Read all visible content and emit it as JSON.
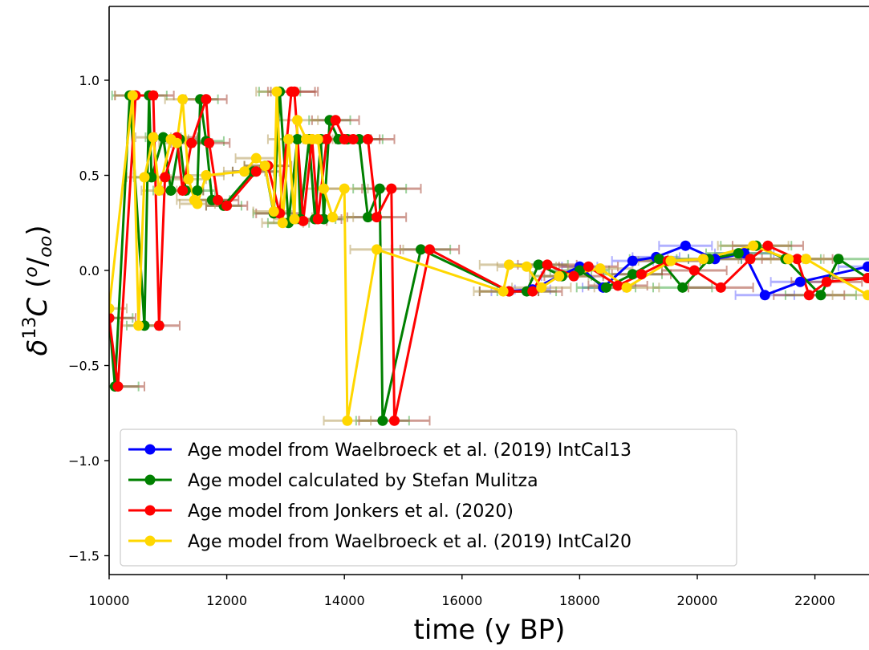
{
  "chart_data": {
    "type": "line",
    "xlabel": "time (y BP)",
    "ylabel_parts": [
      "δ",
      "13",
      "C",
      "(",
      "o",
      "/",
      "oo",
      ")"
    ],
    "xlim": [
      10000,
      22900
    ],
    "ylim": [
      -1.6,
      1.4
    ],
    "x_ticks": [
      10000,
      12000,
      14000,
      16000,
      18000,
      20000,
      22000
    ],
    "y_ticks": [
      -1.5,
      -1.0,
      -0.5,
      0.0,
      0.5,
      1.0
    ],
    "x_tick_labels": [
      "10000",
      "12000",
      "14000",
      "16000",
      "18000",
      "20000",
      "22000"
    ],
    "y_tick_labels": [
      "−1.5",
      "−1.0",
      "−0.5",
      "0.0",
      "0.5",
      "1.0"
    ],
    "legend_position": "lower-left",
    "series": [
      {
        "name": "Age model from Waelbroeck et al. (2019) IntCal13",
        "color": "#0000ff",
        "err_color": "#7070ff",
        "x": [
          16800,
          17200,
          17650,
          18000,
          18400,
          18900,
          19300,
          19800,
          20300,
          20800,
          21150,
          21750,
          22900
        ],
        "y": [
          -0.11,
          -0.1,
          -0.03,
          0.02,
          -0.09,
          0.05,
          0.07,
          0.13,
          0.06,
          0.09,
          -0.13,
          -0.06,
          0.02
        ],
        "xerr": [
          300,
          300,
          300,
          300,
          350,
          350,
          400,
          450,
          450,
          500,
          500,
          500,
          500
        ]
      },
      {
        "name": "Age model calculated by Stefan Mulitza",
        "color": "#008000",
        "err_color": "#4caf4c",
        "x": [
          10000,
          10100,
          10350,
          10600,
          10680,
          10720,
          10920,
          11050,
          11200,
          11300,
          11500,
          11550,
          11650,
          11750,
          11950,
          12450,
          12650,
          12800,
          12900,
          13050,
          13200,
          13250,
          13400,
          13500,
          13600,
          13650,
          13750,
          13900,
          14050,
          14250,
          14400,
          14600,
          14650,
          15300,
          16800,
          17100,
          17300,
          17700,
          18000,
          18450,
          18900,
          19350,
          19750,
          20200,
          20700,
          21000,
          21500,
          22100,
          22400,
          22900
        ],
        "y": [
          -0.25,
          -0.61,
          0.92,
          -0.29,
          0.92,
          0.49,
          0.7,
          0.42,
          0.69,
          0.42,
          0.42,
          0.9,
          0.68,
          0.37,
          0.34,
          0.52,
          0.55,
          0.3,
          0.94,
          0.25,
          0.69,
          0.27,
          0.69,
          0.27,
          0.69,
          0.27,
          0.79,
          0.69,
          0.69,
          0.69,
          0.28,
          0.43,
          -0.79,
          0.11,
          -0.11,
          -0.11,
          0.03,
          -0.03,
          0.0,
          -0.09,
          -0.02,
          0.06,
          -0.09,
          0.06,
          0.09,
          0.13,
          0.06,
          -0.13,
          0.06,
          -0.04
        ],
        "xerr": [
          400,
          400,
          300,
          300,
          300,
          300,
          300,
          300,
          300,
          300,
          300,
          300,
          300,
          300,
          300,
          350,
          350,
          350,
          350,
          350,
          350,
          350,
          350,
          350,
          350,
          350,
          350,
          350,
          400,
          400,
          400,
          450,
          450,
          500,
          500,
          500,
          500,
          500,
          500,
          500,
          500,
          500,
          500,
          550,
          550,
          600,
          600,
          600,
          600,
          600
        ]
      },
      {
        "name": "Age model from Jonkers et al. (2020)",
        "color": "#ff0000",
        "err_color": "#a84a3a",
        "x": [
          10000,
          10150,
          10450,
          10750,
          10850,
          10950,
          11150,
          11250,
          11400,
          11650,
          11700,
          11850,
          12000,
          12500,
          12700,
          12900,
          13100,
          13150,
          13300,
          13450,
          13550,
          13700,
          13850,
          14000,
          14150,
          14400,
          14550,
          14800,
          14850,
          15450,
          16800,
          17200,
          17450,
          17900,
          18150,
          18650,
          19050,
          19500,
          19950,
          20400,
          20900,
          21200,
          21700,
          21900,
          22200,
          22900
        ],
        "y": [
          -0.25,
          -0.61,
          0.92,
          0.92,
          -0.29,
          0.49,
          0.7,
          0.42,
          0.67,
          0.9,
          0.67,
          0.37,
          0.34,
          0.52,
          0.55,
          0.3,
          0.94,
          0.94,
          0.26,
          0.69,
          0.27,
          0.69,
          0.79,
          0.69,
          0.69,
          0.69,
          0.28,
          0.43,
          -0.79,
          0.11,
          -0.11,
          -0.11,
          0.03,
          -0.03,
          0.02,
          -0.08,
          -0.02,
          0.05,
          0.0,
          -0.09,
          0.06,
          0.13,
          0.06,
          -0.13,
          -0.06,
          -0.04
        ],
        "xerr": [
          450,
          450,
          350,
          350,
          350,
          350,
          350,
          350,
          350,
          350,
          350,
          350,
          350,
          400,
          400,
          400,
          400,
          400,
          400,
          400,
          400,
          400,
          400,
          450,
          450,
          450,
          500,
          500,
          600,
          500,
          500,
          500,
          500,
          500,
          500,
          500,
          500,
          550,
          550,
          550,
          600,
          600,
          600,
          600,
          600,
          600
        ]
      },
      {
        "name": "Age model from Waelbroeck et al. (2019) IntCal20",
        "color": "#ffd700",
        "err_color": "#b8a060",
        "x": [
          10000,
          10400,
          10500,
          10600,
          10750,
          10850,
          11050,
          11150,
          11250,
          11350,
          11450,
          11500,
          11650,
          12300,
          12500,
          12650,
          12800,
          12850,
          12950,
          13050,
          13150,
          13200,
          13350,
          13450,
          13550,
          13650,
          13800,
          14000,
          14050,
          14550,
          16700,
          16800,
          17100,
          17350,
          17650,
          18350,
          18800,
          19550,
          20100,
          20950,
          21550,
          21850,
          22900
        ],
        "y": [
          -0.2,
          0.92,
          -0.29,
          0.49,
          0.7,
          0.42,
          0.69,
          0.67,
          0.9,
          0.48,
          0.37,
          0.35,
          0.5,
          0.52,
          0.59,
          0.55,
          0.31,
          0.94,
          0.25,
          0.69,
          0.27,
          0.79,
          0.69,
          0.69,
          0.69,
          0.43,
          0.28,
          0.43,
          -0.79,
          0.11,
          -0.11,
          0.03,
          0.02,
          -0.09,
          -0.03,
          0.01,
          -0.09,
          0.05,
          0.06,
          0.13,
          0.06,
          0.06,
          -0.13
        ],
        "xerr": [
          300,
          300,
          300,
          300,
          300,
          300,
          300,
          300,
          300,
          300,
          300,
          300,
          300,
          350,
          350,
          350,
          350,
          350,
          350,
          350,
          350,
          350,
          350,
          350,
          350,
          350,
          350,
          400,
          400,
          450,
          500,
          500,
          500,
          500,
          500,
          550,
          550,
          550,
          600,
          600,
          600,
          600,
          600
        ]
      }
    ]
  }
}
